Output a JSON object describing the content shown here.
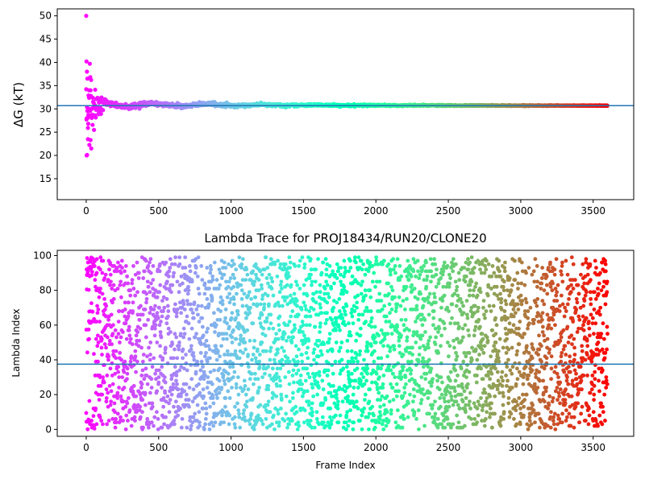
{
  "chart_data": [
    {
      "type": "scatter",
      "title": "",
      "xlabel": "",
      "ylabel": "ΔG (kT)",
      "xlim": [
        -200,
        3780
      ],
      "ylim": [
        10.5,
        51.5
      ],
      "xticks": [
        0,
        500,
        1000,
        1500,
        2000,
        2500,
        3000,
        3500
      ],
      "yticks": [
        15,
        20,
        25,
        30,
        35,
        40,
        45,
        50
      ],
      "grid": false,
      "hline": 30.7,
      "hline_color": "#1f77b4",
      "n_frames": 3600,
      "colormap": "rainbow",
      "outliers": [
        {
          "x": 0,
          "y": 50.0
        },
        {
          "x": 2,
          "y": 40.2
        },
        {
          "x": 5,
          "y": 38.0
        },
        {
          "x": 8,
          "y": 36.5
        },
        {
          "x": 3,
          "y": 20.0
        },
        {
          "x": 6,
          "y": 20.1
        },
        {
          "x": 12,
          "y": 23.5
        },
        {
          "x": 25,
          "y": 39.7
        },
        {
          "x": 20,
          "y": 34.0
        },
        {
          "x": 30,
          "y": 23.3
        },
        {
          "x": 35,
          "y": 21.5
        },
        {
          "x": 15,
          "y": 28.7
        }
      ],
      "convergence": {
        "final_value": 30.7,
        "early_spread": 4.0,
        "late_spread": 0.3
      }
    },
    {
      "type": "scatter",
      "title": "Lambda Trace for PROJ18434/RUN20/CLONE20",
      "xlabel": "Frame Index",
      "ylabel": "Lambda Index",
      "xlim": [
        -200,
        3780
      ],
      "ylim": [
        -4,
        103
      ],
      "xticks": [
        0,
        500,
        1000,
        1500,
        2000,
        2500,
        3000,
        3500
      ],
      "yticks": [
        0,
        20,
        40,
        60,
        80,
        100
      ],
      "grid": false,
      "hline": 37.5,
      "hline_color": "#1f77b4",
      "n_frames": 3600,
      "colormap": "rainbow",
      "y_range": [
        0,
        99
      ]
    }
  ],
  "colors": {
    "hline": "#1f77b4",
    "axes": "#000000",
    "background": "#ffffff"
  }
}
